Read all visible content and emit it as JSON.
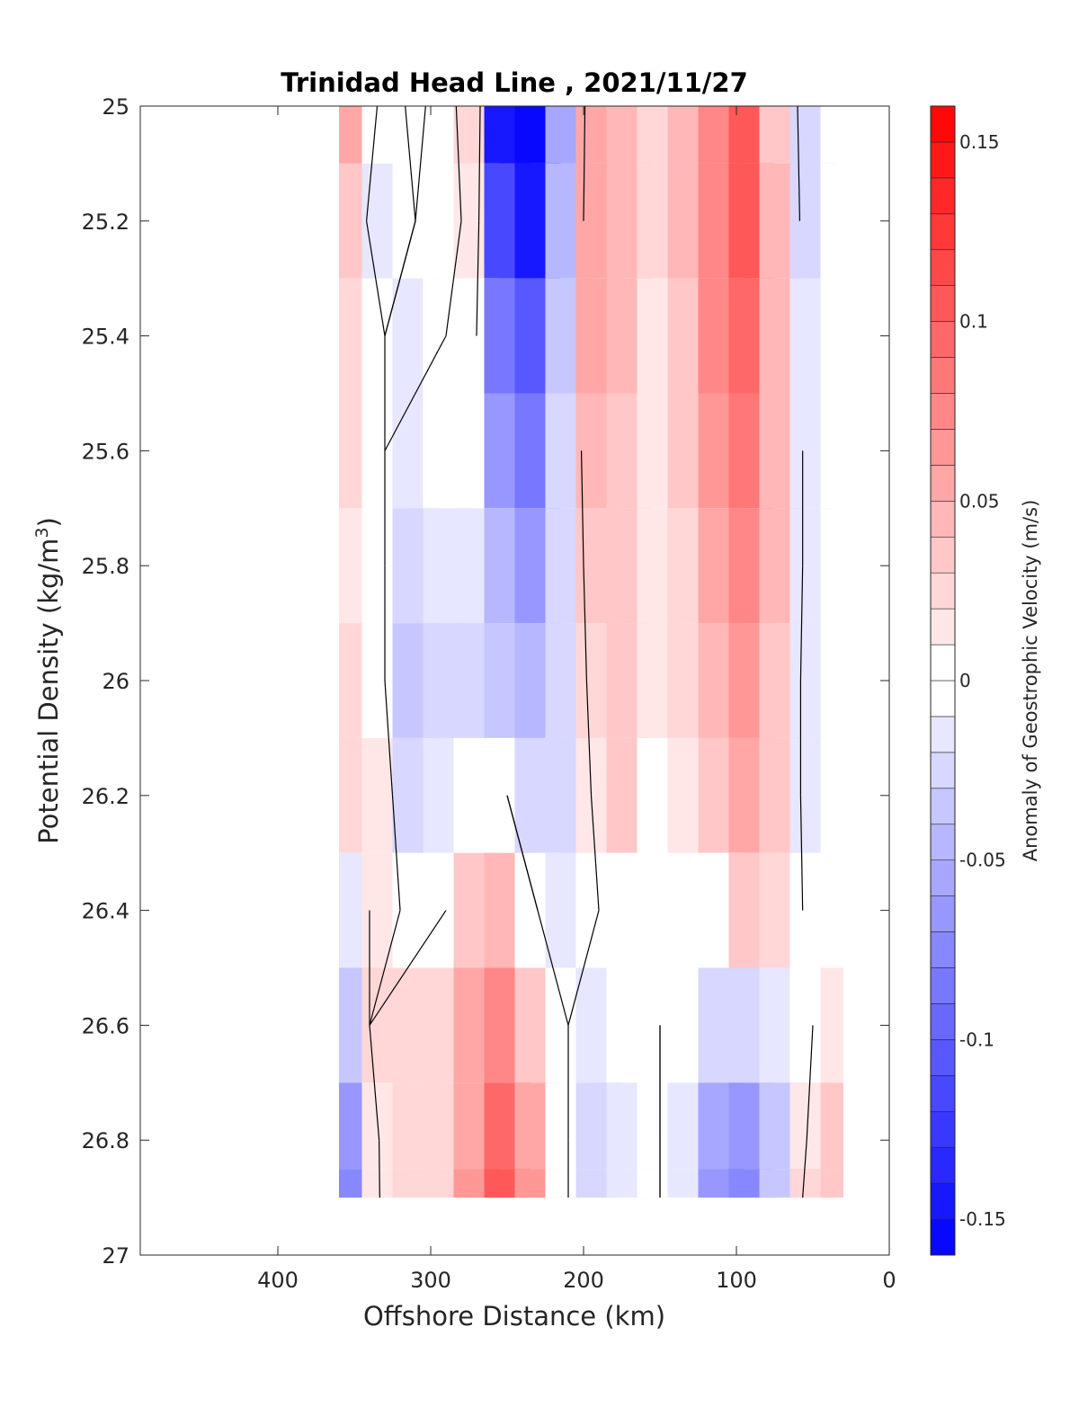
{
  "chart_data": {
    "type": "heatmap",
    "title": "Trinidad Head Line , 2021/11/27",
    "xlabel": "Offshore Distance (km)",
    "ylabel_main": "Potential Density (kg/m",
    "ylabel_sup": "3",
    "ylabel_close": ")",
    "colorbar_label": "Anomaly of Geostrophic Velocity (m/s)",
    "xlim": [
      490,
      0
    ],
    "ylim": [
      25,
      27
    ],
    "x_reversed": true,
    "y_reversed": true,
    "xticks": [
      400,
      300,
      200,
      100,
      0
    ],
    "xtick_labels": [
      "400",
      "300",
      "200",
      "100",
      "0"
    ],
    "yticks": [
      25,
      25.2,
      25.4,
      25.6,
      25.8,
      26,
      26.2,
      26.4,
      26.6,
      26.8,
      27
    ],
    "ytick_labels": [
      "25",
      "25.2",
      "25.4",
      "25.6",
      "25.8",
      "26",
      "26.2",
      "26.4",
      "26.6",
      "26.8",
      "27"
    ],
    "colorbar": {
      "limits": [
        -0.16,
        0.16
      ],
      "ticks": [
        0.15,
        0.1,
        0.05,
        0,
        -0.05,
        -0.1,
        -0.15
      ],
      "tick_labels": [
        "0.15",
        "0.1",
        "0.05",
        "0",
        "-0.05",
        "-0.1",
        "-0.15"
      ],
      "colormap": "blue-white-red",
      "neg_color": "#0000ff",
      "zero_color": "#ffffff",
      "pos_color": "#ff0000",
      "levels": 32
    },
    "zero_contour_color": "#000000",
    "x": [
      360,
      330,
      310,
      290,
      270,
      250,
      230,
      210,
      190,
      170,
      150,
      130,
      110,
      90,
      70,
      50,
      30
    ],
    "y": [
      25,
      25.2,
      25.4,
      25.6,
      25.8,
      26,
      26.2,
      26.4,
      26.6,
      26.8,
      26.9
    ],
    "z": [
      [
        0.05,
        -0.01,
        0.005,
        -0.01,
        0.02,
        -0.15,
        -0.16,
        -0.06,
        0.05,
        0.04,
        0.02,
        0.04,
        0.07,
        0.1,
        0.03,
        -0.03,
        -0.01
      ],
      [
        0.03,
        -0.02,
        0.0,
        -0.01,
        0.01,
        -0.12,
        -0.14,
        -0.05,
        0.05,
        0.04,
        0.02,
        0.04,
        0.07,
        0.1,
        0.04,
        -0.03,
        -0.01
      ],
      [
        0.02,
        0.0,
        -0.015,
        0.0,
        0.0,
        -0.09,
        -0.11,
        -0.04,
        0.05,
        0.04,
        0.01,
        0.03,
        0.07,
        0.09,
        0.04,
        -0.02,
        -0.01
      ],
      [
        0.02,
        0.0,
        -0.02,
        -0.01,
        -0.01,
        -0.07,
        -0.09,
        -0.03,
        0.04,
        0.03,
        0.01,
        0.03,
        0.06,
        0.08,
        0.04,
        -0.02,
        -0.01
      ],
      [
        0.015,
        0.0,
        -0.03,
        -0.02,
        -0.02,
        -0.05,
        -0.07,
        -0.03,
        0.03,
        0.03,
        0.01,
        0.02,
        0.05,
        0.07,
        0.04,
        -0.02,
        -0.01
      ],
      [
        0.02,
        0.0,
        -0.035,
        -0.025,
        -0.03,
        -0.04,
        -0.05,
        -0.03,
        0.02,
        0.03,
        0.01,
        0.02,
        0.04,
        0.06,
        0.03,
        -0.02,
        -0.01
      ],
      [
        0.02,
        0.01,
        -0.03,
        -0.02,
        -0.01,
        0.0,
        -0.03,
        -0.03,
        0.01,
        0.03,
        0.0,
        0.01,
        0.03,
        0.05,
        0.03,
        -0.02,
        -0.01
      ],
      [
        -0.02,
        0.01,
        -0.01,
        0.0,
        0.03,
        0.04,
        0.0,
        -0.02,
        0.0,
        0.0,
        0.0,
        0.0,
        0.0,
        0.03,
        0.02,
        -0.01,
        0.0
      ],
      [
        -0.04,
        0.02,
        0.02,
        0.02,
        0.05,
        0.07,
        0.03,
        0.0,
        -0.02,
        -0.01,
        0.0,
        -0.01,
        -0.03,
        -0.03,
        -0.02,
        0.0,
        0.01
      ],
      [
        -0.07,
        0.01,
        0.02,
        0.02,
        0.05,
        0.09,
        0.05,
        0.0,
        -0.03,
        -0.02,
        0.0,
        -0.02,
        -0.06,
        -0.07,
        -0.04,
        0.01,
        0.03
      ],
      [
        -0.08,
        0.01,
        0.02,
        0.02,
        0.06,
        0.1,
        0.06,
        0.0,
        -0.03,
        -0.02,
        0.0,
        -0.02,
        -0.07,
        -0.08,
        -0.04,
        0.02,
        0.03
      ]
    ],
    "data_mask_note": "",
    "grid": false
  }
}
